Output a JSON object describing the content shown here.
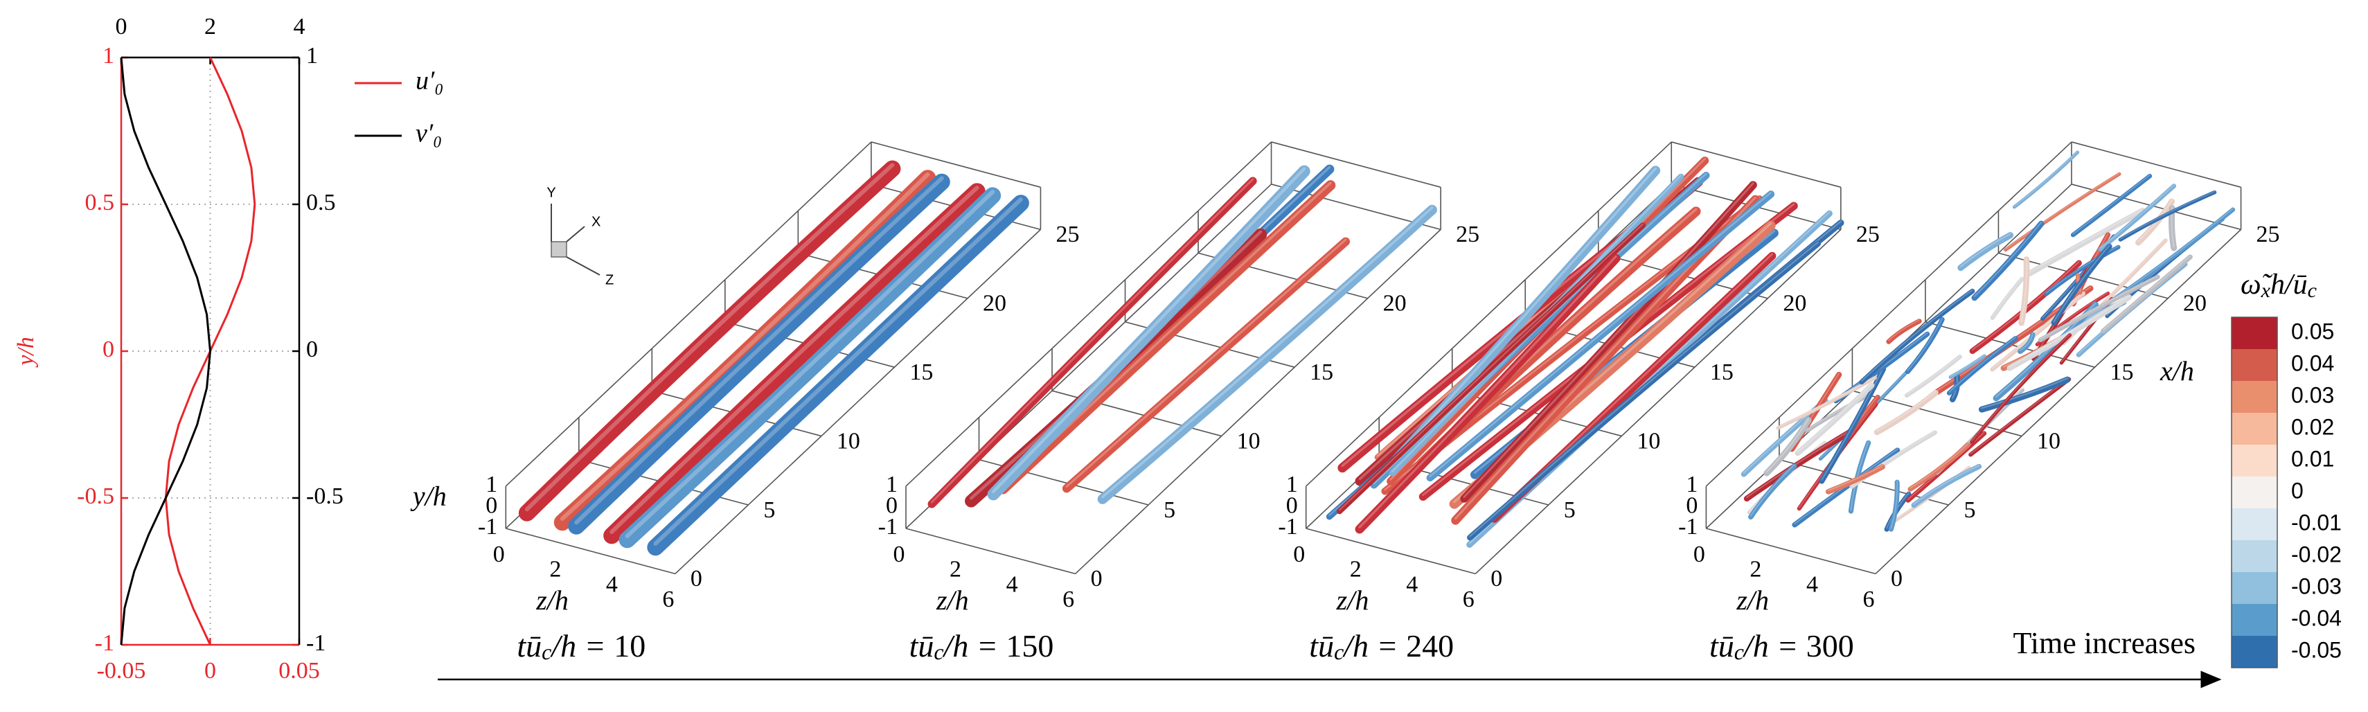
{
  "chart_data": {
    "type": "line",
    "ylabel": "y/h",
    "y": [
      -1,
      -0.875,
      -0.75,
      -0.625,
      -0.5,
      -0.375,
      -0.25,
      -0.125,
      0,
      0.125,
      0.25,
      0.375,
      0.5,
      0.625,
      0.75,
      0.875,
      1
    ],
    "series": [
      {
        "name": "u′₀",
        "color": "#e8262b",
        "values": [
          0,
          -0.0096,
          -0.0177,
          -0.0231,
          -0.025,
          -0.0231,
          -0.0177,
          -0.0096,
          0,
          0.0096,
          0.0177,
          0.0231,
          0.025,
          0.0231,
          0.0177,
          0.0096,
          0
        ]
      },
      {
        "name": "v′₀",
        "color": "#000000",
        "axis": "x2",
        "values": [
          0,
          0.076,
          0.293,
          0.617,
          1,
          1.383,
          1.707,
          1.924,
          2,
          1.924,
          1.707,
          1.383,
          1,
          0.617,
          0.293,
          0.076,
          0
        ]
      }
    ],
    "xlim": [
      -0.05,
      0.05
    ],
    "xticks": [
      -0.05,
      0,
      0.05
    ],
    "x2lim": [
      0,
      4
    ],
    "x2ticks": [
      0,
      2,
      4
    ],
    "ylim": [
      -1,
      1
    ],
    "yticks": [
      -1,
      -0.5,
      0,
      0.5,
      1
    ],
    "grid": true
  },
  "panels": {
    "time_symbol": {
      "main": "tū",
      "sub": "c",
      "rest": "/h = "
    },
    "times": [
      10,
      150,
      240,
      300
    ],
    "xlabel": "x/h",
    "ylabel": "y/h",
    "zlabel": "z/h",
    "xticks": [
      0,
      5,
      10,
      15,
      20,
      25
    ],
    "zticks": [
      0,
      2,
      4,
      6
    ],
    "yticks": [
      -1,
      0,
      1
    ]
  },
  "triad": {
    "y": "Y",
    "x": "X",
    "z": "Z"
  },
  "colorbar": {
    "title": {
      "main": "ω̃",
      "sub": "x",
      "mid": "h/ū",
      "sub2": "c"
    },
    "ticks": [
      0.05,
      0.04,
      0.03,
      0.02,
      0.01,
      0,
      -0.01,
      -0.02,
      -0.03,
      -0.04,
      -0.05
    ],
    "colors": [
      "#b2202e",
      "#d45c4c",
      "#ea8f6e",
      "#f6b99b",
      "#fbdccb",
      "#f4f1ef",
      "#dbe8f1",
      "#bcd7e8",
      "#90c0dd",
      "#5a9ccb",
      "#2f6fae"
    ]
  },
  "time_axis": {
    "label": "Time increases"
  }
}
